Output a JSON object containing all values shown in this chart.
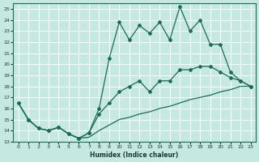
{
  "xlabel": "Humidex (Indice chaleur)",
  "xlim": [
    -0.5,
    23.5
  ],
  "ylim": [
    13,
    25.5
  ],
  "yticks": [
    13,
    14,
    15,
    16,
    17,
    18,
    19,
    20,
    21,
    22,
    23,
    24,
    25
  ],
  "xticks": [
    0,
    1,
    2,
    3,
    4,
    5,
    6,
    7,
    8,
    9,
    10,
    11,
    12,
    13,
    14,
    15,
    16,
    17,
    18,
    19,
    20,
    21,
    22,
    23
  ],
  "background_color": "#c5e8e0",
  "grid_color": "#ffffff",
  "line_color": "#1a6b5a",
  "line1_x": [
    0,
    1,
    2,
    3,
    4,
    5,
    6,
    7,
    8,
    9,
    10,
    11,
    12,
    13,
    14,
    15,
    16,
    17,
    18,
    19,
    20,
    21,
    22,
    23
  ],
  "line1_y": [
    16.5,
    15.0,
    14.2,
    14.0,
    14.3,
    13.7,
    13.3,
    13.4,
    14.0,
    14.5,
    15.0,
    15.2,
    15.5,
    15.7,
    16.0,
    16.2,
    16.5,
    16.8,
    17.0,
    17.2,
    17.5,
    17.7,
    18.0,
    18.0
  ],
  "line2_x": [
    0,
    1,
    2,
    3,
    4,
    5,
    6,
    7,
    8,
    9,
    10,
    11,
    12,
    13,
    14,
    15,
    16,
    17,
    18,
    19,
    20,
    21,
    22,
    23
  ],
  "line2_y": [
    16.5,
    15.0,
    14.2,
    14.0,
    14.3,
    13.7,
    13.3,
    13.8,
    15.5,
    16.5,
    17.5,
    18.0,
    18.5,
    17.5,
    18.5,
    18.5,
    19.5,
    19.5,
    19.8,
    19.8,
    19.3,
    18.8,
    18.5,
    18.0
  ],
  "line3_x": [
    0,
    1,
    2,
    3,
    4,
    5,
    6,
    7,
    8,
    9,
    10,
    11,
    12,
    13,
    14,
    15,
    16,
    17,
    18,
    19,
    20,
    21,
    22,
    23
  ],
  "line3_y": [
    16.5,
    15.0,
    14.2,
    14.0,
    14.3,
    13.7,
    13.3,
    13.8,
    16.0,
    20.5,
    23.8,
    22.2,
    23.5,
    22.8,
    23.8,
    22.2,
    25.2,
    23.0,
    24.0,
    21.8,
    21.8,
    19.3,
    18.5,
    18.0
  ]
}
